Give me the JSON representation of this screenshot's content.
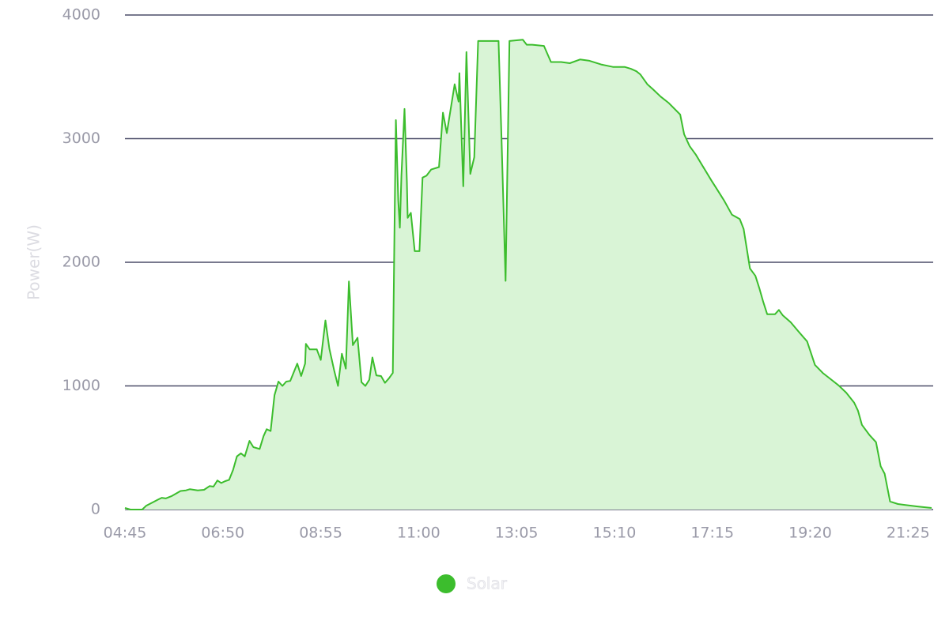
{
  "chart_data": {
    "type": "area",
    "ylabel": "Power(W)",
    "x": [
      285,
      292,
      307,
      312,
      327,
      332,
      337,
      345,
      356,
      363,
      368,
      378,
      386,
      393,
      398,
      403,
      408,
      413,
      418,
      423,
      428,
      433,
      438,
      444,
      449,
      457,
      462,
      466,
      471,
      476,
      481,
      486,
      491,
      496,
      505,
      510,
      515,
      516,
      521,
      530,
      535,
      541,
      546,
      552,
      557,
      562,
      567,
      571,
      576,
      582,
      587,
      592,
      597,
      601,
      606,
      612,
      617,
      622,
      627,
      629,
      631,
      634,
      636,
      638,
      642,
      645,
      646,
      650,
      655,
      661,
      665,
      670,
      676,
      686,
      691,
      696,
      706,
      711,
      712,
      717,
      721,
      726,
      731,
      736,
      747,
      757,
      762,
      766,
      771,
      776,
      793,
      798,
      805,
      820,
      829,
      842,
      853,
      866,
      878,
      893,
      908,
      923,
      931,
      938,
      943,
      952,
      959,
      969,
      979,
      994,
      999,
      1006,
      1014,
      1024,
      1034,
      1040,
      1050,
      1060,
      1070,
      1075,
      1083,
      1090,
      1095,
      1100,
      1105,
      1115,
      1120,
      1125,
      1135,
      1145,
      1156,
      1166,
      1176,
      1186,
      1196,
      1206,
      1216,
      1221,
      1226,
      1236,
      1244,
      1250,
      1255,
      1262,
      1272,
      1297,
      1315
    ],
    "series": [
      {
        "name": "Solar",
        "color": "#3cbd2d",
        "fill": "#d9f4d6",
        "values": [
          13,
          0,
          0,
          30,
          80,
          95,
          90,
          110,
          150,
          155,
          165,
          155,
          160,
          190,
          185,
          235,
          215,
          230,
          240,
          320,
          430,
          455,
          430,
          555,
          505,
          490,
          595,
          650,
          635,
          925,
          1035,
          1000,
          1035,
          1040,
          1180,
          1080,
          1180,
          1340,
          1295,
          1295,
          1210,
          1530,
          1300,
          1130,
          1000,
          1260,
          1140,
          1845,
          1330,
          1390,
          1030,
          1000,
          1050,
          1230,
          1085,
          1080,
          1025,
          1060,
          1105,
          2200,
          3150,
          2500,
          2280,
          2700,
          3240,
          2650,
          2360,
          2400,
          2090,
          2090,
          2685,
          2700,
          2750,
          2770,
          3210,
          3045,
          3440,
          3300,
          3530,
          2615,
          3700,
          2715,
          2850,
          3790,
          3790,
          3790,
          3790,
          2970,
          1850,
          3790,
          3800,
          3760,
          3760,
          3750,
          3620,
          3620,
          3610,
          3640,
          3630,
          3600,
          3580,
          3580,
          3565,
          3545,
          3520,
          3440,
          3400,
          3340,
          3290,
          3195,
          3035,
          2940,
          2870,
          2765,
          2660,
          2600,
          2500,
          2385,
          2350,
          2270,
          1950,
          1890,
          1790,
          1680,
          1580,
          1580,
          1615,
          1570,
          1515,
          1440,
          1360,
          1170,
          1105,
          1055,
          1005,
          945,
          865,
          800,
          685,
          600,
          545,
          350,
          290,
          65,
          45,
          25,
          13
        ]
      }
    ],
    "xlim": [
      285,
      1317
    ],
    "xticks": [
      {
        "value": 285,
        "label": "04:45"
      },
      {
        "value": 410,
        "label": "06:50"
      },
      {
        "value": 535,
        "label": "08:55"
      },
      {
        "value": 660,
        "label": "11:00"
      },
      {
        "value": 785,
        "label": "13:05"
      },
      {
        "value": 910,
        "label": "15:10"
      },
      {
        "value": 1035,
        "label": "17:15"
      },
      {
        "value": 1160,
        "label": "19:20"
      },
      {
        "value": 1285,
        "label": "21:25"
      }
    ],
    "ylim": [
      0,
      4000
    ],
    "yticks": [
      0,
      1000,
      2000,
      3000,
      4000
    ],
    "grid": true
  }
}
